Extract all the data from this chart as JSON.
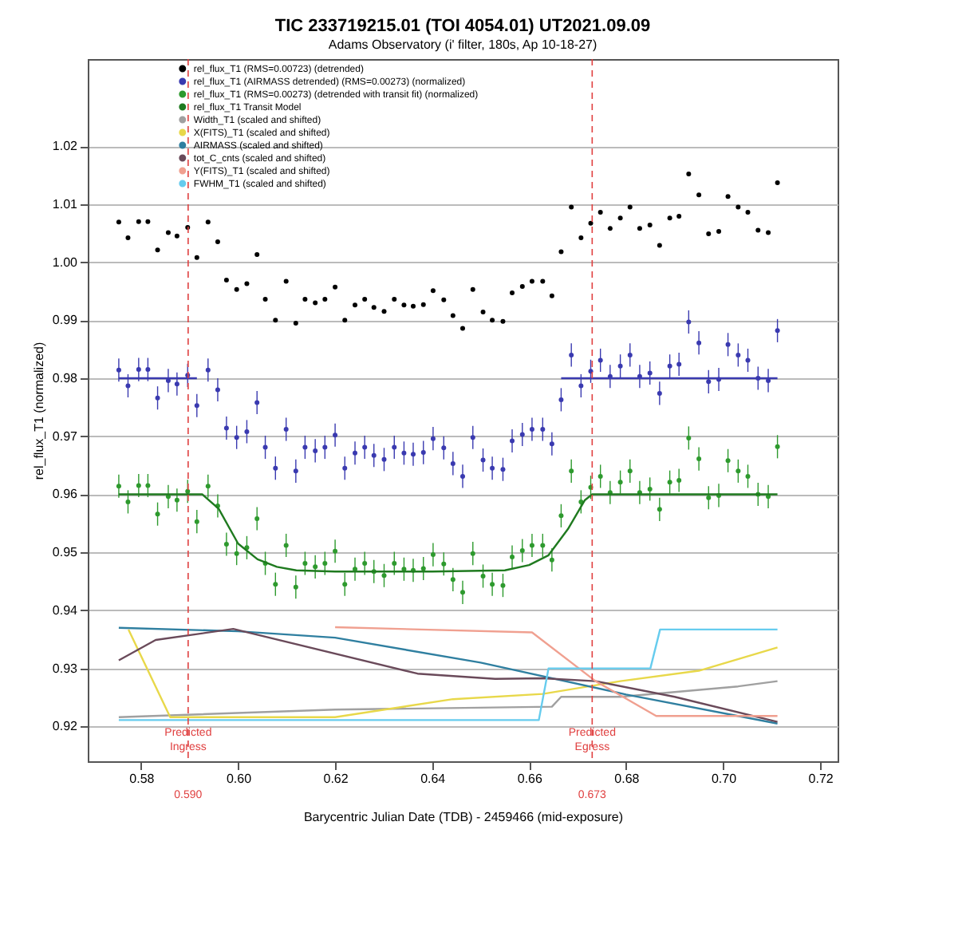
{
  "chart_data": {
    "type": "scatter",
    "title": "TIC 233719215.01 (TOI 4054.01)   UT2021.09.09",
    "subtitle": "Adams Observatory (i' filter, 180s, Ap 10-18-27)",
    "xlabel": "Barycentric Julian Date (TDB) - 2459466 (mid-exposure)",
    "ylabel": "rel_flux_T1 (normalized)",
    "xlim": [
      0.569,
      0.7236
    ],
    "ylim": [
      0.914,
      1.035
    ],
    "xticks": [
      0.58,
      {
        "value": 0.6,
        "label": "0.60"
      },
      0.62,
      0.64,
      0.66,
      0.68,
      {
        "value": 0.7,
        "label": "0.70"
      },
      0.72
    ],
    "yticks": [
      0.92,
      0.93,
      0.94,
      0.95,
      0.96,
      0.97,
      0.98,
      0.99,
      {
        "value": 1,
        "label": "1.00"
      },
      1.01,
      1.02
    ],
    "grid": "y",
    "legend": "top",
    "x": [
      0.5754,
      0.5773,
      0.5795,
      0.5814,
      0.5834,
      0.5856,
      0.5874,
      0.5896,
      0.5915,
      0.5938,
      0.5958,
      0.5976,
      0.5997,
      0.6018,
      0.6039,
      0.6056,
      0.6077,
      0.6099,
      0.6119,
      0.6138,
      0.6159,
      0.6179,
      0.62,
      0.622,
      0.6241,
      0.6261,
      0.628,
      0.6301,
      0.6322,
      0.6342,
      0.6361,
      0.6382,
      0.6402,
      0.6424,
      0.6443,
      0.6463,
      0.6484,
      0.6505,
      0.6524,
      0.6546,
      0.6565,
      0.6586,
      0.6606,
      0.6628,
      0.6647,
      0.6666,
      0.6687,
      0.6707,
      0.6727,
      0.6747,
      0.6767,
      0.6788,
      0.6808,
      0.6828,
      0.6849,
      0.6869,
      0.689,
      0.6909,
      0.6929,
      0.695,
      0.697,
      0.6991,
      0.701,
      0.7031,
      0.7051,
      0.7072,
      0.7093,
      0.7112
    ],
    "series": [
      {
        "name": "rel_flux_T1 (RMS=0.00723) (detrended)",
        "color": "#000000",
        "values": [
          1.0069,
          1.0042,
          1.007,
          1.007,
          1.0021,
          1.0051,
          1.0045,
          1.006,
          1.0008,
          1.0069,
          1.0035,
          0.9969,
          0.9953,
          0.9963,
          1.0013,
          0.9936,
          0.99,
          0.9967,
          0.9895,
          0.9936,
          0.993,
          0.9936,
          0.9957,
          0.99,
          0.9926,
          0.9936,
          0.9922,
          0.9915,
          0.9936,
          0.9926,
          0.9924,
          0.9927,
          0.9951,
          0.9935,
          0.9908,
          0.9886,
          0.9953,
          0.9914,
          0.99,
          0.9898,
          0.9947,
          0.9958,
          0.9967,
          0.9967,
          0.9942,
          1.0018,
          1.0095,
          1.0042,
          1.0067,
          1.0086,
          1.0058,
          1.0076,
          1.0095,
          1.0058,
          1.0064,
          1.0029,
          1.0076,
          1.0079,
          1.0152,
          1.0116,
          1.0049,
          1.0053,
          1.0113,
          1.0095,
          1.0086,
          1.0055,
          1.0051,
          1.0137
        ]
      },
      {
        "name": "rel_flux_T1 (AIRMASS detrended) (RMS=0.00273) (normalized)",
        "color": "#3a3ab0",
        "values": [
          0.9814,
          0.9787,
          0.9815,
          0.9815,
          0.9766,
          0.9796,
          0.979,
          0.9805,
          0.9753,
          0.9814,
          0.978,
          0.9714,
          0.9698,
          0.9708,
          0.9758,
          0.9681,
          0.9645,
          0.9712,
          0.964,
          0.9681,
          0.9675,
          0.9681,
          0.9702,
          0.9645,
          0.9671,
          0.9681,
          0.9667,
          0.966,
          0.9681,
          0.9671,
          0.9669,
          0.9672,
          0.9696,
          0.968,
          0.9653,
          0.9631,
          0.9698,
          0.9659,
          0.9645,
          0.9643,
          0.9692,
          0.9703,
          0.9712,
          0.9712,
          0.9687,
          0.9763,
          0.984,
          0.9787,
          0.9812,
          0.9831,
          0.9803,
          0.9821,
          0.984,
          0.9803,
          0.9809,
          0.9774,
          0.9821,
          0.9824,
          0.9897,
          0.9861,
          0.9794,
          0.9798,
          0.9858,
          0.984,
          0.9831,
          0.98,
          0.9796,
          0.9882
        ],
        "errors": [
          0.002,
          0.002,
          0.002,
          0.002,
          0.002,
          0.002,
          0.002,
          0.002,
          0.002,
          0.002,
          0.002,
          0.002,
          0.002,
          0.002,
          0.002,
          0.002,
          0.002,
          0.002,
          0.002,
          0.002,
          0.002,
          0.002,
          0.002,
          0.002,
          0.002,
          0.002,
          0.002,
          0.002,
          0.002,
          0.002,
          0.002,
          0.002,
          0.002,
          0.002,
          0.002,
          0.002,
          0.002,
          0.002,
          0.002,
          0.002,
          0.002,
          0.002,
          0.002,
          0.002,
          0.002,
          0.002,
          0.002,
          0.002,
          0.002,
          0.002,
          0.002,
          0.002,
          0.002,
          0.002,
          0.002,
          0.002,
          0.002,
          0.002,
          0.002,
          0.002,
          0.002,
          0.002,
          0.002,
          0.002,
          0.002,
          0.002,
          0.002,
          0.002
        ]
      },
      {
        "type": "line",
        "color": "#3a3ab0",
        "x": [
          0.5754,
          0.5915,
          0.63,
          0.6666,
          0.7112
        ],
        "values": [
          0.98,
          0.98,
          null,
          0.98,
          0.98
        ]
      },
      {
        "name": "rel_flux_T1 (RMS=0.00273) (detrended with transit fit) (normalized)",
        "color": "#2e9a2e",
        "values": [
          0.9614,
          0.9587,
          0.9615,
          0.9615,
          0.9566,
          0.9596,
          0.959,
          0.9605,
          0.9553,
          0.9614,
          0.958,
          0.9514,
          0.9498,
          0.9508,
          0.9558,
          0.9481,
          0.9445,
          0.9512,
          0.944,
          0.9481,
          0.9475,
          0.9481,
          0.9502,
          0.9445,
          0.9471,
          0.9481,
          0.9467,
          0.946,
          0.9481,
          0.9471,
          0.9469,
          0.9472,
          0.9496,
          0.948,
          0.9453,
          0.9431,
          0.9498,
          0.9459,
          0.9445,
          0.9443,
          0.9492,
          0.9503,
          0.9512,
          0.9512,
          0.9487,
          0.9563,
          0.964,
          0.9587,
          0.9612,
          0.9631,
          0.9603,
          0.9621,
          0.964,
          0.9603,
          0.9609,
          0.9574,
          0.9621,
          0.9624,
          0.9697,
          0.9661,
          0.9594,
          0.9598,
          0.9658,
          0.964,
          0.9631,
          0.96,
          0.9596,
          0.9682
        ],
        "errors": [
          0.002,
          0.002,
          0.002,
          0.002,
          0.002,
          0.002,
          0.002,
          0.002,
          0.002,
          0.002,
          0.002,
          0.002,
          0.002,
          0.002,
          0.002,
          0.002,
          0.002,
          0.002,
          0.002,
          0.002,
          0.002,
          0.002,
          0.002,
          0.002,
          0.002,
          0.002,
          0.002,
          0.002,
          0.002,
          0.002,
          0.002,
          0.002,
          0.002,
          0.002,
          0.002,
          0.002,
          0.002,
          0.002,
          0.002,
          0.002,
          0.002,
          0.002,
          0.002,
          0.002,
          0.002,
          0.002,
          0.002,
          0.002,
          0.002,
          0.002,
          0.002,
          0.002,
          0.002,
          0.002,
          0.002,
          0.002,
          0.002,
          0.002,
          0.002,
          0.002,
          0.002,
          0.002,
          0.002,
          0.002,
          0.002,
          0.002,
          0.002,
          0.002
        ]
      },
      {
        "name": "rel_flux_T1 Transit Model",
        "type": "line",
        "color": "#1f7a1f",
        "x": [
          0.5754,
          0.5926,
          0.596,
          0.6,
          0.604,
          0.608,
          0.612,
          0.62,
          0.64,
          0.655,
          0.66,
          0.664,
          0.668,
          0.6715,
          0.673,
          0.7112
        ],
        "values": [
          0.96,
          0.96,
          0.9575,
          0.9515,
          0.9488,
          0.9475,
          0.9469,
          0.9467,
          0.9467,
          0.9469,
          0.9478,
          0.9495,
          0.954,
          0.959,
          0.96,
          0.96
        ]
      },
      {
        "name": "Width_T1 (scaled and shifted)",
        "type": "line",
        "color": "#a0a0a0",
        "x": [
          0.5754,
          0.62,
          0.6647,
          0.6666,
          0.6788,
          0.7031,
          0.7112
        ],
        "values": [
          0.9216,
          0.9229,
          0.9234,
          0.9251,
          0.9251,
          0.9269,
          0.9278
        ]
      },
      {
        "name": "X(FITS)_T1 (scaled and shifted)",
        "type": "line",
        "color": "#e8d84a",
        "x": [
          0.5774,
          0.586,
          0.62,
          0.6443,
          0.6628,
          0.6788,
          0.695,
          0.7112
        ],
        "values": [
          0.9367,
          0.9216,
          0.9216,
          0.9247,
          0.9256,
          0.9278,
          0.9296,
          0.9336
        ]
      },
      {
        "name": "AIRMASS (scaled and shifted)",
        "type": "line",
        "color": "#2f7fa0",
        "x": [
          0.5754,
          0.6,
          0.62,
          0.65,
          0.68,
          0.7112
        ],
        "values": [
          0.937,
          0.9364,
          0.9353,
          0.931,
          0.9255,
          0.9205
        ]
      },
      {
        "name": "tot_C_cnts (scaled and shifted)",
        "type": "line",
        "color": "#6a4a5a",
        "x": [
          0.5754,
          0.583,
          0.599,
          0.637,
          0.653,
          0.6628,
          0.6737,
          0.69,
          0.7112
        ],
        "values": [
          0.9314,
          0.9349,
          0.9368,
          0.9291,
          0.9282,
          0.9283,
          0.9278,
          0.9251,
          0.9208
        ]
      },
      {
        "name": "Y(FITS)_T1 (scaled and shifted)",
        "type": "line",
        "color": "#f0a090",
        "x": [
          0.62,
          0.6606,
          0.6737,
          0.6862,
          0.7112
        ],
        "values": [
          0.9371,
          0.9362,
          0.9278,
          0.9218,
          0.9218
        ]
      },
      {
        "name": "FWHM_T1 (scaled and shifted)",
        "type": "line",
        "color": "#66ccee",
        "x": [
          0.5754,
          0.662,
          0.664,
          0.685,
          0.687,
          0.7112
        ],
        "values": [
          0.9211,
          0.9211,
          0.93,
          0.93,
          0.9367,
          0.9367
        ]
      }
    ],
    "ref_lines": [
      {
        "axis": "x",
        "value": 0.5897,
        "label": "Predicted Ingress",
        "color": "#e04040",
        "line_style": "dashed"
      },
      {
        "axis": "x",
        "value": 0.673,
        "label": "Predicted Egress",
        "color": "#e04040",
        "line_style": "dashed"
      }
    ],
    "annotations": [
      "0.590",
      "0.673"
    ]
  }
}
